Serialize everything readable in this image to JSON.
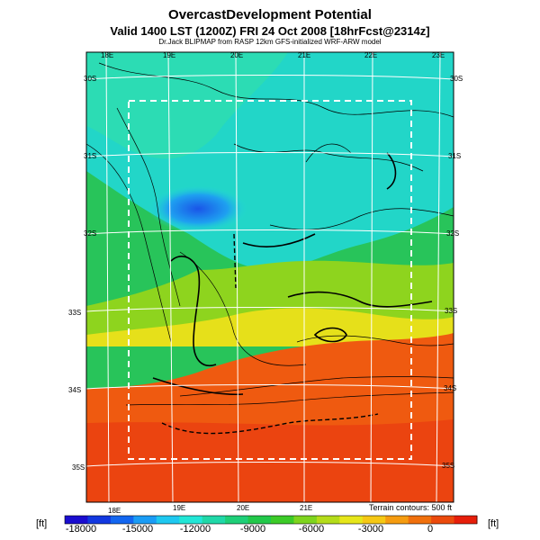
{
  "header": {
    "title": "OvercastDevelopment Potential",
    "valid_line": "Valid 1400 LST (1200Z) FRI 24 Oct 2008 [18hrFcst@2314z]",
    "source_line": "Dr.Jack BLIPMAP from RASP 12km GFS-initialized WRF-ARW model"
  },
  "map": {
    "lon_labels_top": [
      "18E",
      "19E",
      "20E",
      "21E",
      "22E",
      "23E"
    ],
    "lon_labels_bottom": [
      "18E",
      "19E",
      "20E",
      "21E"
    ],
    "lat_labels_left": [
      "30S",
      "31S",
      "32S",
      "33S",
      "34S",
      "35S"
    ],
    "lat_labels_right": [
      "30S",
      "31S",
      "32S",
      "33S",
      "34S",
      "35S"
    ],
    "terrain_note": "Terrain contours: 500 ft"
  },
  "colorbar": {
    "unit_left": "[ft]",
    "unit_right": "[ft]",
    "ticks": [
      "-18000",
      "-15000",
      "-12000",
      "-9000",
      "-6000",
      "-3000",
      "0"
    ],
    "colors": [
      "#1a0dcf",
      "#1238e0",
      "#1266f0",
      "#1a9cf5",
      "#1ec8f0",
      "#22e6d6",
      "#20d8a8",
      "#1ecf78",
      "#22c84a",
      "#3ccb28",
      "#7ed41e",
      "#b4dc1a",
      "#e6e61a",
      "#f5c814",
      "#f59c10",
      "#f0700c",
      "#eb4a0c",
      "#e61e0a"
    ]
  }
}
